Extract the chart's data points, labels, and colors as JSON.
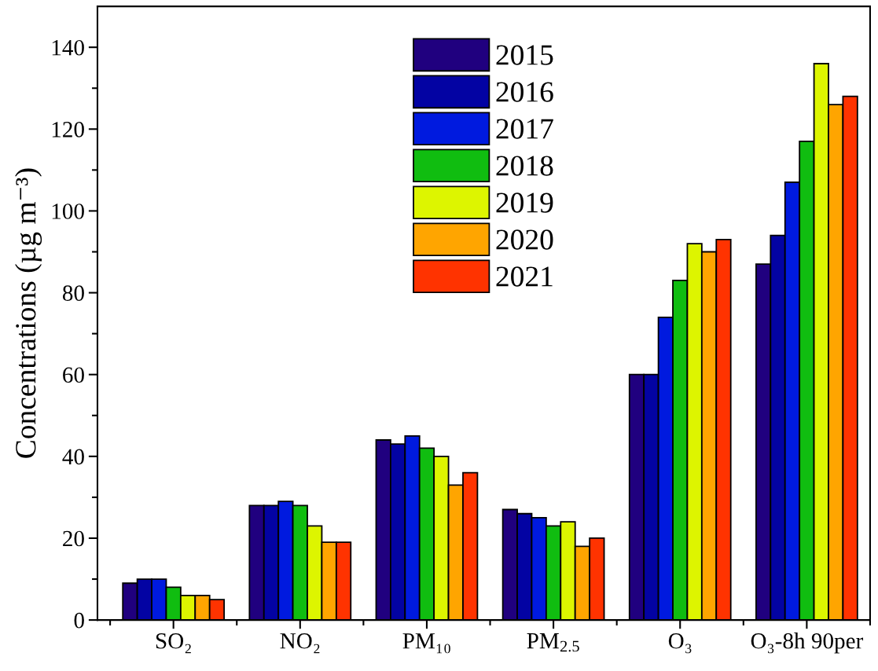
{
  "chart_data": {
    "type": "bar",
    "ylabel": "Concentrations (µg m⁻³)",
    "categories": [
      "SO₂",
      "NO₂",
      "PM₁₀",
      "PM$_{2.5}$",
      "O₃",
      "O₃-8h 90per"
    ],
    "series": [
      {
        "name": "2015",
        "color": "#20007f",
        "values": [
          9,
          28,
          44,
          27,
          60,
          87
        ]
      },
      {
        "name": "2016",
        "color": "#0303a3",
        "values": [
          10,
          28,
          43,
          26,
          60,
          94
        ]
      },
      {
        "name": "2017",
        "color": "#001adf",
        "values": [
          10,
          29,
          45,
          25,
          74,
          107
        ]
      },
      {
        "name": "2018",
        "color": "#10bd10",
        "values": [
          8,
          28,
          42,
          23,
          83,
          117
        ]
      },
      {
        "name": "2019",
        "color": "#ddf500",
        "values": [
          6,
          23,
          40,
          24,
          92,
          136
        ]
      },
      {
        "name": "2020",
        "color": "#ffa500",
        "values": [
          6,
          19,
          33,
          18,
          90,
          126
        ]
      },
      {
        "name": "2021",
        "color": "#ff3300",
        "values": [
          5,
          19,
          36,
          20,
          93,
          128
        ]
      }
    ],
    "ylim": [
      0,
      150
    ],
    "yticks": [
      0,
      {
        "value": 10,
        "label": null
      },
      20,
      {
        "value": 30,
        "label": null
      },
      40,
      {
        "value": 50,
        "label": null
      },
      60,
      {
        "value": 70,
        "label": null
      },
      80,
      {
        "value": 90,
        "label": null
      },
      100,
      {
        "value": 110,
        "label": null
      },
      120,
      {
        "value": 130,
        "label": null
      },
      140
    ],
    "legend": "top"
  }
}
